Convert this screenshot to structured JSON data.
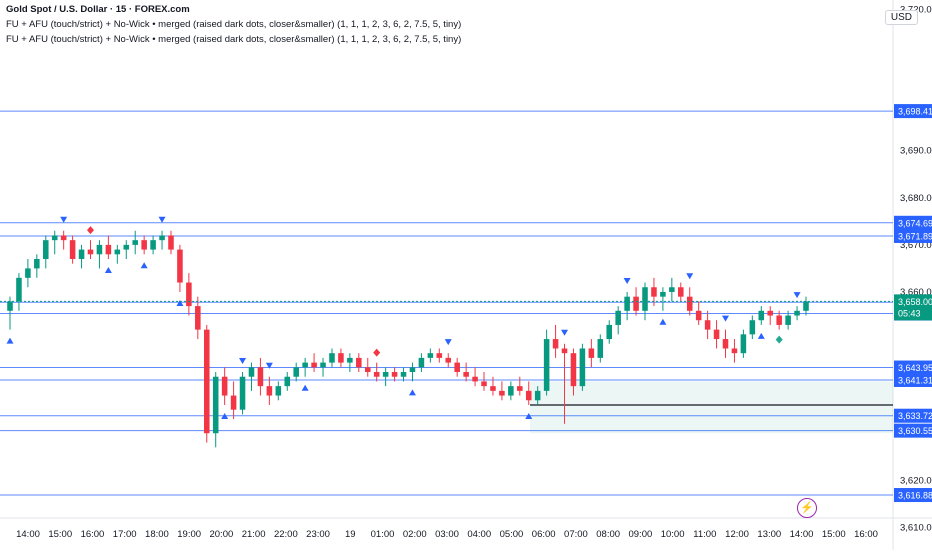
{
  "header": {
    "symbol_title": "Gold Spot / U.S. Dollar · 15 · FOREX.com",
    "indicator_line_1": "FU + AFU (touch/strict) + No-Wick • merged (raised dark dots, closer&smaller) (1, 1, 1, 2, 3, 6, 2, 7.5, 5, tiny)",
    "indicator_line_2": "FU + AFU (touch/strict) + No-Wick • merged (raised dark dots, closer&smaller) (1, 1, 1, 2, 3, 6, 2, 7.5, 5, tiny)"
  },
  "currency_label": "USD",
  "events_icon": "lightning-icon",
  "colors": {
    "up": "#089981",
    "down": "#f23645",
    "level_line": "#2962ff",
    "current_price_bg": "#089981",
    "signal_up": "#2962ff",
    "signal_down": "#2962ff"
  },
  "chart_data": {
    "type": "candlestick",
    "timeframe": "15",
    "y_range": [
      3612,
      3722
    ],
    "y_ticks": [
      "3,720.00",
      "3,690.00",
      "3,680.00",
      "3,670.00",
      "3,660.00",
      "3,620.00",
      "3,610.00"
    ],
    "y_tick_values": [
      3720,
      3690,
      3680,
      3670,
      3660,
      3620,
      3610
    ],
    "x_ticks": [
      "14:00",
      "15:00",
      "16:00",
      "17:00",
      "18:00",
      "19:00",
      "20:00",
      "21:00",
      "22:00",
      "23:00",
      "19",
      "01:00",
      "02:00",
      "03:00",
      "04:00",
      "05:00",
      "06:00",
      "07:00",
      "08:00",
      "09:00",
      "10:00",
      "11:00",
      "12:00",
      "13:00",
      "14:00",
      "15:00",
      "16:00"
    ],
    "current_price": "3,658.00",
    "countdown": "05:43",
    "level_lines": [
      {
        "price": 3698.41,
        "label": "3,698.41"
      },
      {
        "price": 3674.69,
        "label": "3,674.69"
      },
      {
        "price": 3671.89,
        "label": "3,671.89"
      },
      {
        "price": 3657.81,
        "label": "3,657.81"
      },
      {
        "price": 3655.42,
        "label": "3,655.42"
      },
      {
        "price": 3643.95,
        "label": "3,643.95"
      },
      {
        "price": 3641.31,
        "label": "3,641.31"
      },
      {
        "price": 3633.72,
        "label": "3,633.72"
      },
      {
        "price": 3630.55,
        "label": "3,630.55"
      },
      {
        "price": 3616.88,
        "label": "3,616.88"
      }
    ],
    "candles": [
      {
        "o": 3656,
        "h": 3659,
        "l": 3652,
        "c": 3658
      },
      {
        "o": 3658,
        "h": 3664,
        "l": 3656,
        "c": 3663
      },
      {
        "o": 3663,
        "h": 3667,
        "l": 3661,
        "c": 3665
      },
      {
        "o": 3665,
        "h": 3668,
        "l": 3663,
        "c": 3667
      },
      {
        "o": 3667,
        "h": 3672,
        "l": 3665,
        "c": 3671
      },
      {
        "o": 3671,
        "h": 3673,
        "l": 3668,
        "c": 3672
      },
      {
        "o": 3672,
        "h": 3673,
        "l": 3669,
        "c": 3671
      },
      {
        "o": 3671,
        "h": 3672,
        "l": 3666,
        "c": 3667
      },
      {
        "o": 3667,
        "h": 3670,
        "l": 3665,
        "c": 3669
      },
      {
        "o": 3669,
        "h": 3671,
        "l": 3667,
        "c": 3668
      },
      {
        "o": 3668,
        "h": 3671,
        "l": 3665,
        "c": 3670
      },
      {
        "o": 3670,
        "h": 3672,
        "l": 3667,
        "c": 3668
      },
      {
        "o": 3668,
        "h": 3670,
        "l": 3666,
        "c": 3669
      },
      {
        "o": 3669,
        "h": 3671,
        "l": 3667,
        "c": 3670
      },
      {
        "o": 3670,
        "h": 3673,
        "l": 3668,
        "c": 3671
      },
      {
        "o": 3671,
        "h": 3672,
        "l": 3668,
        "c": 3669
      },
      {
        "o": 3669,
        "h": 3672,
        "l": 3668,
        "c": 3671
      },
      {
        "o": 3671,
        "h": 3673,
        "l": 3669,
        "c": 3672
      },
      {
        "o": 3672,
        "h": 3673,
        "l": 3668,
        "c": 3669
      },
      {
        "o": 3669,
        "h": 3670,
        "l": 3660,
        "c": 3662
      },
      {
        "o": 3662,
        "h": 3664,
        "l": 3655,
        "c": 3657
      },
      {
        "o": 3657,
        "h": 3659,
        "l": 3650,
        "c": 3652
      },
      {
        "o": 3652,
        "h": 3653,
        "l": 3628,
        "c": 3630
      },
      {
        "o": 3630,
        "h": 3643,
        "l": 3627,
        "c": 3642
      },
      {
        "o": 3642,
        "h": 3644,
        "l": 3636,
        "c": 3638
      },
      {
        "o": 3638,
        "h": 3641,
        "l": 3633,
        "c": 3635
      },
      {
        "o": 3635,
        "h": 3643,
        "l": 3634,
        "c": 3642
      },
      {
        "o": 3642,
        "h": 3645,
        "l": 3639,
        "c": 3644
      },
      {
        "o": 3644,
        "h": 3646,
        "l": 3638,
        "c": 3640
      },
      {
        "o": 3640,
        "h": 3642,
        "l": 3636,
        "c": 3638
      },
      {
        "o": 3638,
        "h": 3641,
        "l": 3637,
        "c": 3640
      },
      {
        "o": 3640,
        "h": 3643,
        "l": 3639,
        "c": 3642
      },
      {
        "o": 3642,
        "h": 3645,
        "l": 3641,
        "c": 3644
      },
      {
        "o": 3644,
        "h": 3646,
        "l": 3642,
        "c": 3645
      },
      {
        "o": 3645,
        "h": 3647,
        "l": 3643,
        "c": 3644
      },
      {
        "o": 3644,
        "h": 3646,
        "l": 3642,
        "c": 3645
      },
      {
        "o": 3645,
        "h": 3648,
        "l": 3644,
        "c": 3647
      },
      {
        "o": 3647,
        "h": 3648,
        "l": 3644,
        "c": 3645
      },
      {
        "o": 3645,
        "h": 3647,
        "l": 3643,
        "c": 3646
      },
      {
        "o": 3646,
        "h": 3647,
        "l": 3643,
        "c": 3644
      },
      {
        "o": 3644,
        "h": 3646,
        "l": 3642,
        "c": 3643
      },
      {
        "o": 3643,
        "h": 3645,
        "l": 3641,
        "c": 3642
      },
      {
        "o": 3642,
        "h": 3644,
        "l": 3640,
        "c": 3643
      },
      {
        "o": 3643,
        "h": 3644,
        "l": 3641,
        "c": 3642
      },
      {
        "o": 3642,
        "h": 3644,
        "l": 3641,
        "c": 3643
      },
      {
        "o": 3643,
        "h": 3645,
        "l": 3641,
        "c": 3644
      },
      {
        "o": 3644,
        "h": 3647,
        "l": 3643,
        "c": 3646
      },
      {
        "o": 3646,
        "h": 3648,
        "l": 3645,
        "c": 3647
      },
      {
        "o": 3647,
        "h": 3648,
        "l": 3645,
        "c": 3646
      },
      {
        "o": 3646,
        "h": 3647,
        "l": 3644,
        "c": 3645
      },
      {
        "o": 3645,
        "h": 3646,
        "l": 3642,
        "c": 3643
      },
      {
        "o": 3643,
        "h": 3645,
        "l": 3641,
        "c": 3642
      },
      {
        "o": 3642,
        "h": 3644,
        "l": 3640,
        "c": 3641
      },
      {
        "o": 3641,
        "h": 3643,
        "l": 3639,
        "c": 3640
      },
      {
        "o": 3640,
        "h": 3642,
        "l": 3638,
        "c": 3639
      },
      {
        "o": 3639,
        "h": 3641,
        "l": 3637,
        "c": 3638
      },
      {
        "o": 3638,
        "h": 3641,
        "l": 3637,
        "c": 3640
      },
      {
        "o": 3640,
        "h": 3642,
        "l": 3638,
        "c": 3639
      },
      {
        "o": 3639,
        "h": 3641,
        "l": 3636,
        "c": 3637
      },
      {
        "o": 3637,
        "h": 3640,
        "l": 3636,
        "c": 3639
      },
      {
        "o": 3639,
        "h": 3652,
        "l": 3638,
        "c": 3650
      },
      {
        "o": 3650,
        "h": 3653,
        "l": 3646,
        "c": 3648
      },
      {
        "o": 3648,
        "h": 3649,
        "l": 3632,
        "c": 3647
      },
      {
        "o": 3647,
        "h": 3648,
        "l": 3638,
        "c": 3640
      },
      {
        "o": 3640,
        "h": 3649,
        "l": 3639,
        "c": 3648
      },
      {
        "o": 3648,
        "h": 3650,
        "l": 3644,
        "c": 3646
      },
      {
        "o": 3646,
        "h": 3651,
        "l": 3645,
        "c": 3650
      },
      {
        "o": 3650,
        "h": 3654,
        "l": 3649,
        "c": 3653
      },
      {
        "o": 3653,
        "h": 3657,
        "l": 3651,
        "c": 3656
      },
      {
        "o": 3656,
        "h": 3660,
        "l": 3654,
        "c": 3659
      },
      {
        "o": 3659,
        "h": 3661,
        "l": 3655,
        "c": 3656
      },
      {
        "o": 3656,
        "h": 3662,
        "l": 3654,
        "c": 3661
      },
      {
        "o": 3661,
        "h": 3663,
        "l": 3657,
        "c": 3659
      },
      {
        "o": 3659,
        "h": 3661,
        "l": 3656,
        "c": 3660
      },
      {
        "o": 3660,
        "h": 3663,
        "l": 3658,
        "c": 3661
      },
      {
        "o": 3661,
        "h": 3662,
        "l": 3658,
        "c": 3659
      },
      {
        "o": 3659,
        "h": 3661,
        "l": 3655,
        "c": 3656
      },
      {
        "o": 3656,
        "h": 3658,
        "l": 3653,
        "c": 3654
      },
      {
        "o": 3654,
        "h": 3656,
        "l": 3650,
        "c": 3652
      },
      {
        "o": 3652,
        "h": 3654,
        "l": 3648,
        "c": 3650
      },
      {
        "o": 3650,
        "h": 3652,
        "l": 3646,
        "c": 3648
      },
      {
        "o": 3648,
        "h": 3650,
        "l": 3645,
        "c": 3647
      },
      {
        "o": 3647,
        "h": 3652,
        "l": 3646,
        "c": 3651
      },
      {
        "o": 3651,
        "h": 3655,
        "l": 3650,
        "c": 3654
      },
      {
        "o": 3654,
        "h": 3657,
        "l": 3653,
        "c": 3656
      },
      {
        "o": 3656,
        "h": 3657,
        "l": 3653,
        "c": 3655
      },
      {
        "o": 3655,
        "h": 3656,
        "l": 3652,
        "c": 3653
      },
      {
        "o": 3653,
        "h": 3656,
        "l": 3652,
        "c": 3655
      },
      {
        "o": 3655,
        "h": 3657,
        "l": 3654,
        "c": 3656
      },
      {
        "o": 3656,
        "h": 3659,
        "l": 3655,
        "c": 3658
      }
    ],
    "signals": [
      {
        "i": 0,
        "dir": "up"
      },
      {
        "i": 6,
        "dir": "down"
      },
      {
        "i": 9,
        "dir": "down",
        "kind": "diamond"
      },
      {
        "i": 11,
        "dir": "up"
      },
      {
        "i": 15,
        "dir": "up"
      },
      {
        "i": 17,
        "dir": "down"
      },
      {
        "i": 19,
        "dir": "up"
      },
      {
        "i": 24,
        "dir": "up"
      },
      {
        "i": 26,
        "dir": "down"
      },
      {
        "i": 29,
        "dir": "down"
      },
      {
        "i": 33,
        "dir": "up"
      },
      {
        "i": 41,
        "dir": "down",
        "kind": "diamond"
      },
      {
        "i": 45,
        "dir": "up"
      },
      {
        "i": 49,
        "dir": "down"
      },
      {
        "i": 58,
        "dir": "up"
      },
      {
        "i": 62,
        "dir": "down"
      },
      {
        "i": 69,
        "dir": "down"
      },
      {
        "i": 73,
        "dir": "up"
      },
      {
        "i": 76,
        "dir": "down"
      },
      {
        "i": 80,
        "dir": "down"
      },
      {
        "i": 84,
        "dir": "up"
      },
      {
        "i": 86,
        "dir": "up",
        "kind": "diamond"
      },
      {
        "i": 88,
        "dir": "down"
      }
    ]
  }
}
